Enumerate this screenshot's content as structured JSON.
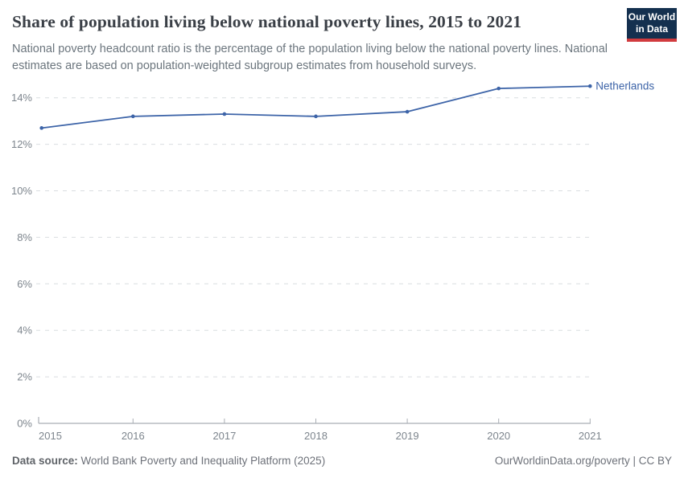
{
  "header": {
    "title": "Share of population living below national poverty lines, 2015 to 2021",
    "subtitle": "National poverty headcount ratio is the percentage of the population living below the national poverty lines. National estimates are based on population-weighted subgroup estimates from household surveys.",
    "logo": {
      "line1": "Our World",
      "line2": "in Data"
    }
  },
  "chart_data": {
    "type": "line",
    "title": "Share of population living below national poverty lines, 2015 to 2021",
    "x": [
      2015,
      2016,
      2017,
      2018,
      2019,
      2020,
      2021
    ],
    "series": [
      {
        "name": "Netherlands",
        "values": [
          12.7,
          13.2,
          13.3,
          13.2,
          13.4,
          14.4,
          14.5
        ]
      }
    ],
    "xlabel": "",
    "ylabel": "",
    "ylim": [
      0,
      14.5
    ],
    "yticks": [
      0,
      2,
      4,
      6,
      8,
      10,
      12,
      14
    ],
    "ytick_suffix": "%",
    "grid": "horizontal-dashed",
    "legend_position": "end-of-line-label"
  },
  "footer": {
    "source_label": "Data source:",
    "source_text": " World Bank Poverty and Inequality Platform (2025)",
    "right_text": "OurWorldinData.org/poverty | CC BY"
  },
  "colors": {
    "series_line": "#3d64a8",
    "series_label": "#3d64a8",
    "gridline": "#d9dde0",
    "axis_line": "#a9aeb4",
    "tick_label": "#7d858d",
    "title": "#3a3f46",
    "subtitle": "#6b757d",
    "logo_bg": "#14304f",
    "logo_red": "#d13b3e"
  }
}
